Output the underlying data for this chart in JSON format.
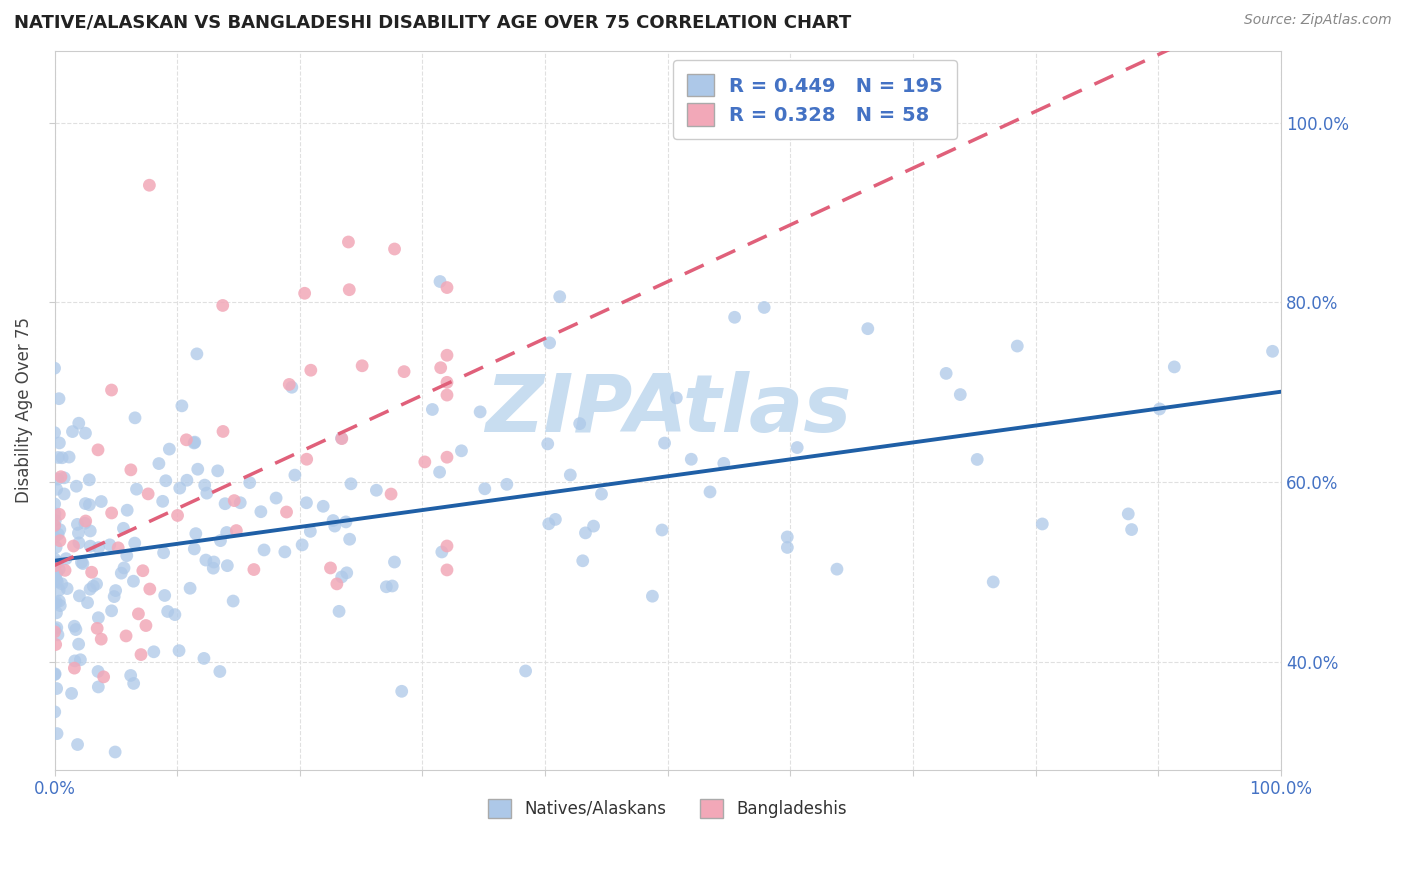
{
  "title": "NATIVE/ALASKAN VS BANGLADESHI DISABILITY AGE OVER 75 CORRELATION CHART",
  "source": "Source: ZipAtlas.com",
  "ylabel": "Disability Age Over 75",
  "legend_label1": "Natives/Alaskans",
  "legend_label2": "Bangladeshis",
  "r1": 0.449,
  "n1": 195,
  "r2": 0.328,
  "n2": 58,
  "blue_color": "#adc8e8",
  "pink_color": "#f2a8b8",
  "blue_line_color": "#1f5fa6",
  "pink_line_color": "#e0607a",
  "axis_tick_color": "#4472c4",
  "title_color": "#222222",
  "source_color": "#888888",
  "watermark": "ZIPAtlas",
  "watermark_color": "#c8ddf0",
  "xmin": 0.0,
  "xmax": 1.0,
  "ymin": 0.28,
  "ymax": 1.08,
  "yticks": [
    0.4,
    0.6,
    0.8,
    1.0
  ],
  "ytick_labels": [
    "40.0%",
    "60.0%",
    "80.0%",
    "100.0%"
  ],
  "xtick_labels_show": [
    "0.0%",
    "100.0%"
  ],
  "grid_color": "#e0e0e0",
  "grid_linestyle": "--"
}
